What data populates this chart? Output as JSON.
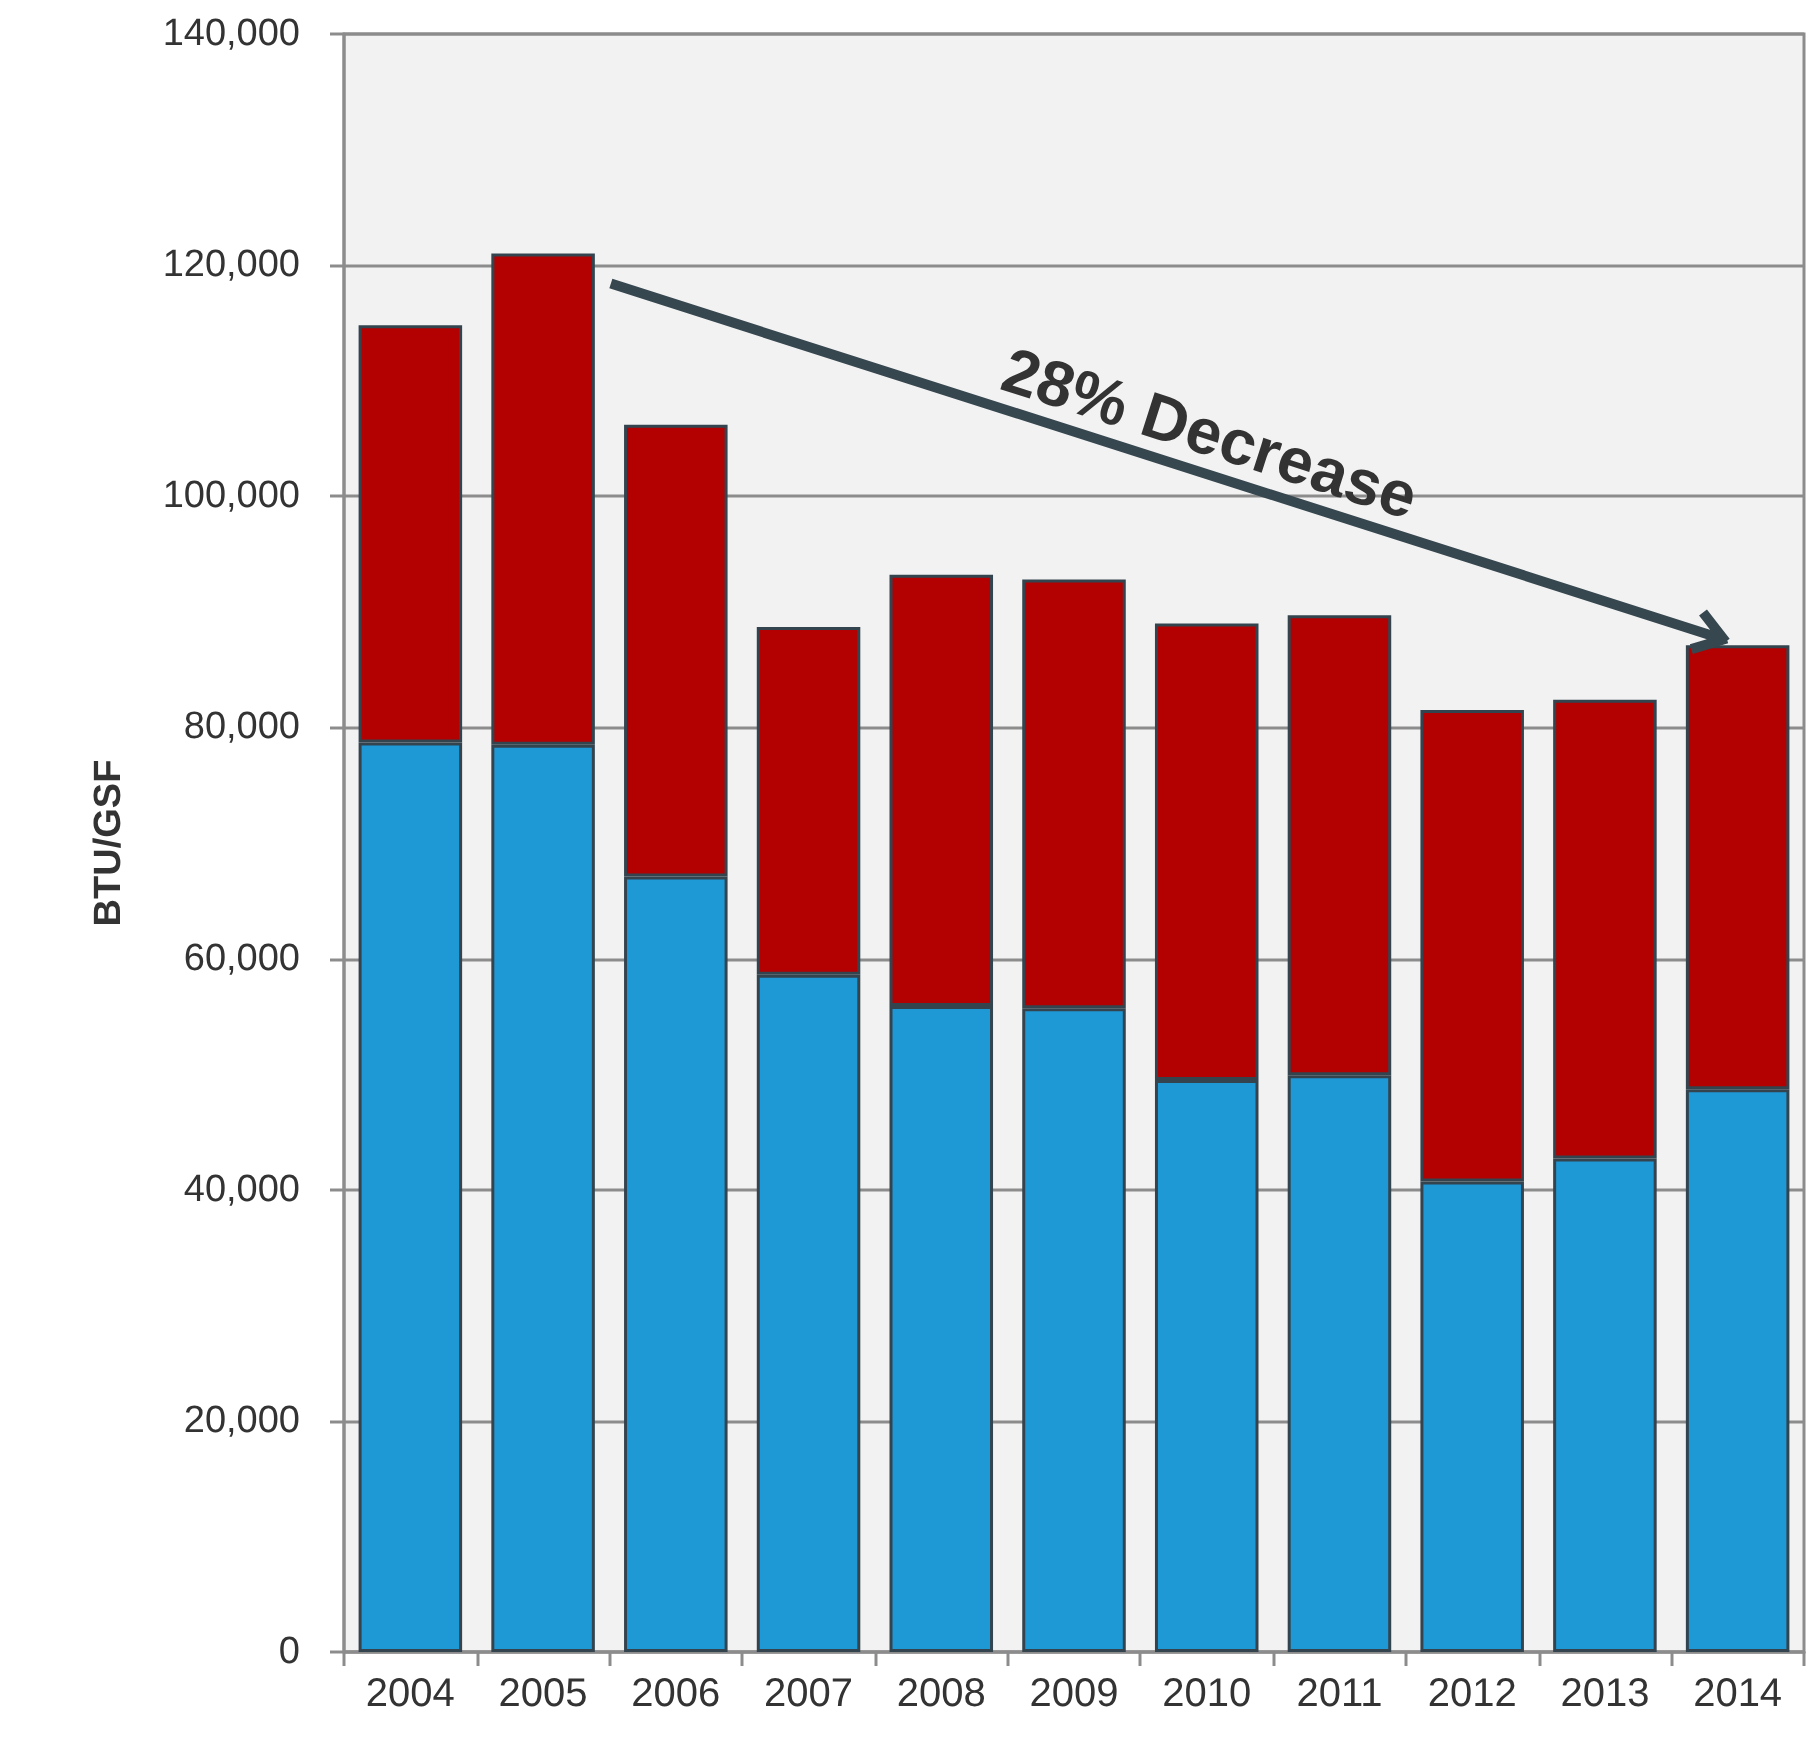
{
  "chart_data": {
    "type": "bar",
    "stacked": true,
    "ylabel": "BTU/GSF",
    "categories": [
      "2004",
      "2005",
      "2006",
      "2007",
      "2008",
      "2009",
      "2010",
      "2011",
      "2012",
      "2013",
      "2014"
    ],
    "series": [
      {
        "color": "#1f99d6",
        "values": [
          78700,
          78500,
          67100,
          58600,
          55900,
          55700,
          49500,
          49900,
          40700,
          42700,
          48700
        ]
      },
      {
        "color": "#b30000",
        "values": [
          36100,
          42500,
          39100,
          30100,
          37300,
          37100,
          39500,
          39800,
          40800,
          39700,
          38400
        ]
      }
    ],
    "ylim": [
      0,
      140000
    ],
    "yticks": [
      0,
      {
        "value": 20000,
        "label": "20,000"
      },
      {
        "value": 40000,
        "label": "40,000"
      },
      {
        "value": 60000,
        "label": "60,000"
      },
      {
        "value": 80000,
        "label": "80,000"
      },
      {
        "value": 100000,
        "label": "100,000"
      },
      {
        "value": 120000,
        "label": "120,000"
      },
      {
        "value": 140000,
        "label": "140,000"
      }
    ],
    "grid": "y",
    "annotations": [
      "28% Decrease"
    ]
  }
}
